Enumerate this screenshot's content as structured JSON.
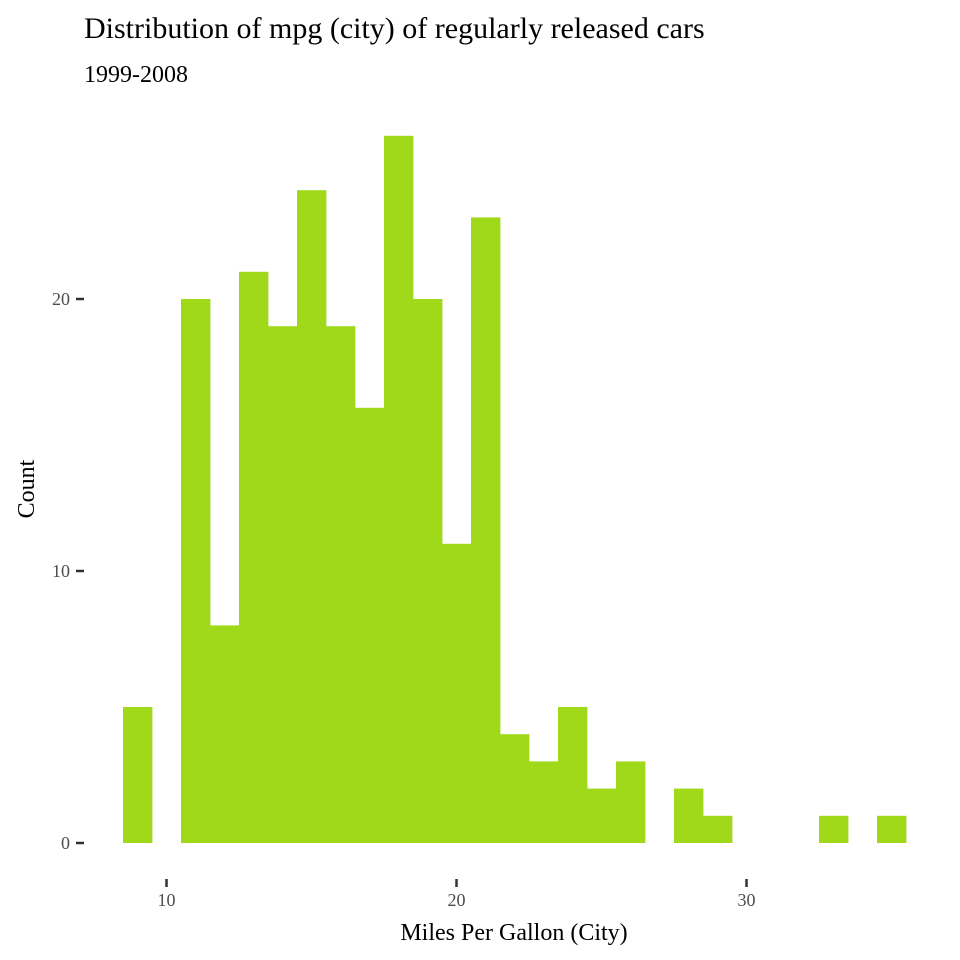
{
  "chart_data": {
    "type": "bar",
    "title": "Distribution of mpg (city) of regularly released cars",
    "subtitle": "1999-2008",
    "xlabel": "Miles Per Gallon (City)",
    "ylabel": "Count",
    "bar_color": "#9FD91A",
    "background": "#FFFFFF",
    "grid": false,
    "xlim": [
      8.5,
      35.5
    ],
    "ylim": [
      0,
      27
    ],
    "x_ticks": [
      10,
      20,
      30
    ],
    "y_ticks": [
      0,
      10,
      20
    ],
    "binwidth": 1,
    "x": [
      9,
      10,
      11,
      12,
      13,
      14,
      15,
      16,
      17,
      18,
      19,
      20,
      21,
      22,
      23,
      24,
      25,
      26,
      27,
      28,
      29,
      30,
      31,
      32,
      33,
      34,
      35
    ],
    "values": [
      5,
      0,
      20,
      8,
      21,
      19,
      24,
      19,
      16,
      26,
      20,
      11,
      23,
      4,
      3,
      5,
      2,
      3,
      0,
      2,
      1,
      0,
      0,
      0,
      1,
      0,
      1
    ]
  }
}
